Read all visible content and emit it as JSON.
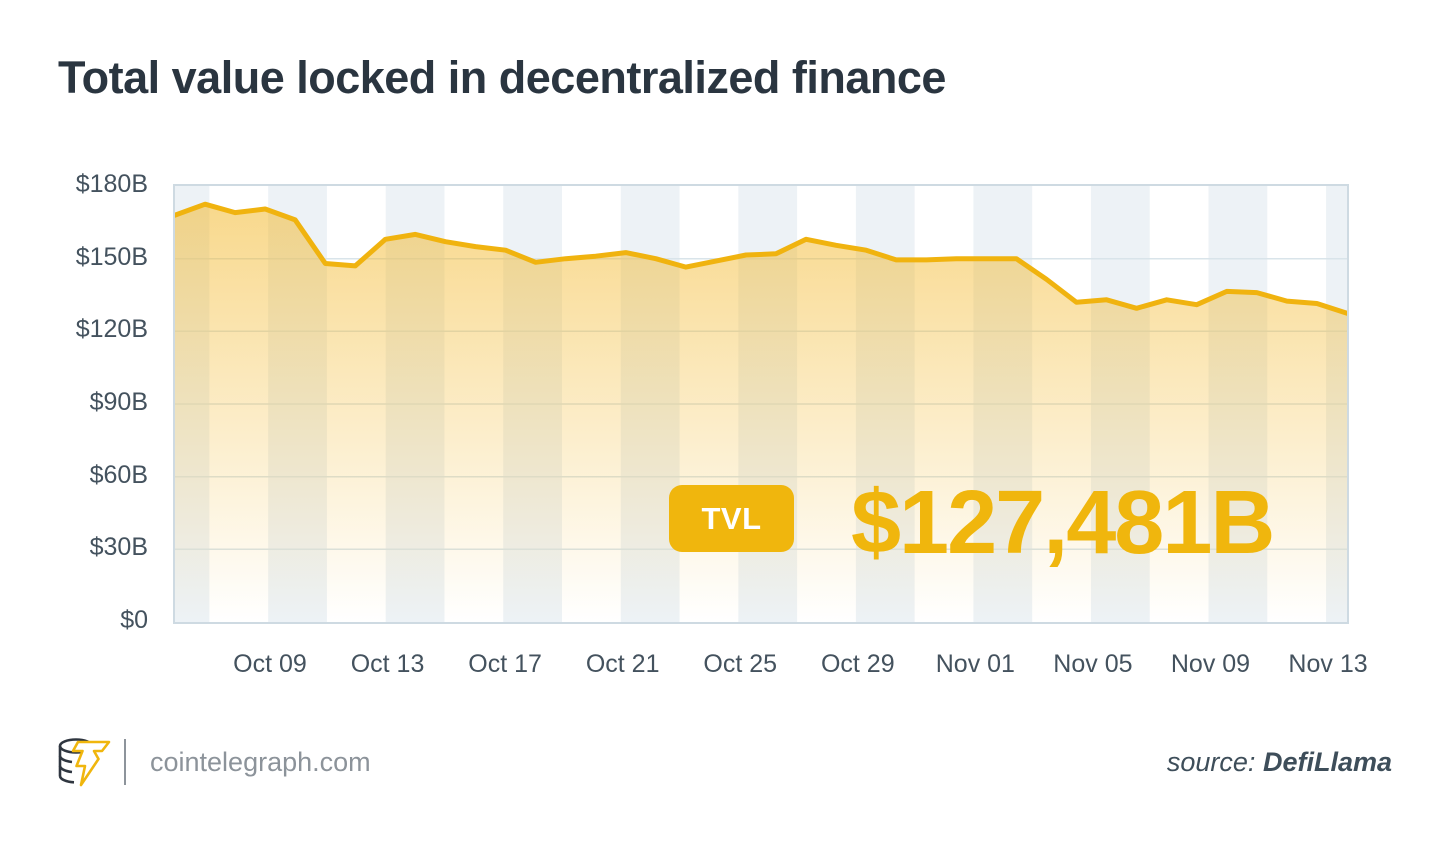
{
  "title": "Total value locked in decentralized finance",
  "chart_data": {
    "type": "area",
    "title": "Total value locked in decentralized finance",
    "unit": "USD billions",
    "series": [
      {
        "name": "TVL",
        "values": [
          168,
          172.5,
          169,
          170.5,
          166,
          148,
          147,
          158,
          160,
          157,
          155,
          153.5,
          148.5,
          150,
          151,
          152.5,
          150,
          146.5,
          149,
          151.5,
          152,
          158,
          155.5,
          153.5,
          149.5,
          149.5,
          150,
          150,
          150,
          141.5,
          132,
          133,
          129.5,
          133,
          131,
          136.5,
          136,
          132.5,
          131.5,
          127.5
        ]
      }
    ],
    "x_tick_labels": [
      "Oct 09",
      "Oct 13",
      "Oct 17",
      "Oct 21",
      "Oct 25",
      "Oct 29",
      "Nov 01",
      "Nov 05",
      "Nov 09",
      "Nov 13"
    ],
    "y_tick_labels": [
      "$180B",
      "$150B",
      "$120B",
      "$90B",
      "$60B",
      "$30B",
      "$0"
    ],
    "ylim": [
      0,
      180
    ],
    "grid": "horizontal",
    "legend": "none",
    "annotation": {
      "badge": "TVL",
      "latest_value": "$127,481B"
    }
  },
  "overlay": {
    "badge_label": "TVL",
    "value_text": "$127,481B"
  },
  "footer": {
    "logo_icon": "cointelegraph-coin-lightning-logo",
    "site": "cointelegraph.com",
    "source_prefix": "source:",
    "source_name": "DefiLlama"
  },
  "colors": {
    "accent_gold": "#F0B60D",
    "line_gold": "#F0B30F",
    "fill_gold": "#F2B522",
    "title_text": "#2A3540",
    "axis_text": "#44525E",
    "band_gray": "#EDF2F6",
    "grid_line": "#D9E4EA",
    "plot_border": "#CEDAE2",
    "footer_text": "#8C939A",
    "source_text": "#3E4E5A"
  }
}
